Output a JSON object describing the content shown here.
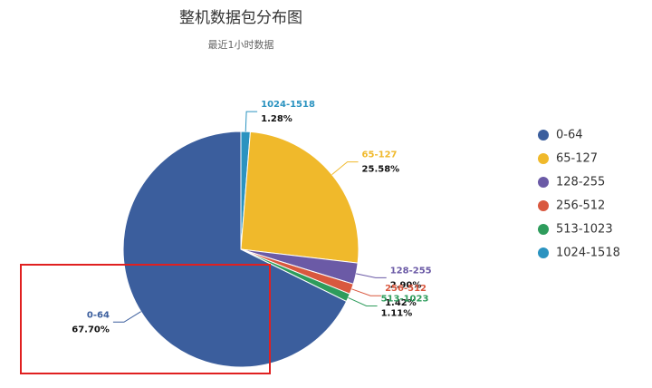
{
  "chart_data": {
    "type": "pie",
    "title": "整机数据包分布图",
    "subtitle": "最近1小时数据",
    "categories": [
      "0-64",
      "65-127",
      "128-255",
      "256-512",
      "513-1023",
      "1024-1518"
    ],
    "values": [
      67.7,
      25.58,
      2.9,
      1.42,
      1.11,
      1.28
    ],
    "value_labels": [
      "67.70%",
      "25.58%",
      "2.90%",
      "1.42%",
      "1.11%",
      "1.28%"
    ],
    "colors": [
      "#3b5e9d",
      "#f0b92b",
      "#6b5aa6",
      "#d9583f",
      "#2e9c5c",
      "#2b93c0"
    ],
    "legend": "right"
  }
}
